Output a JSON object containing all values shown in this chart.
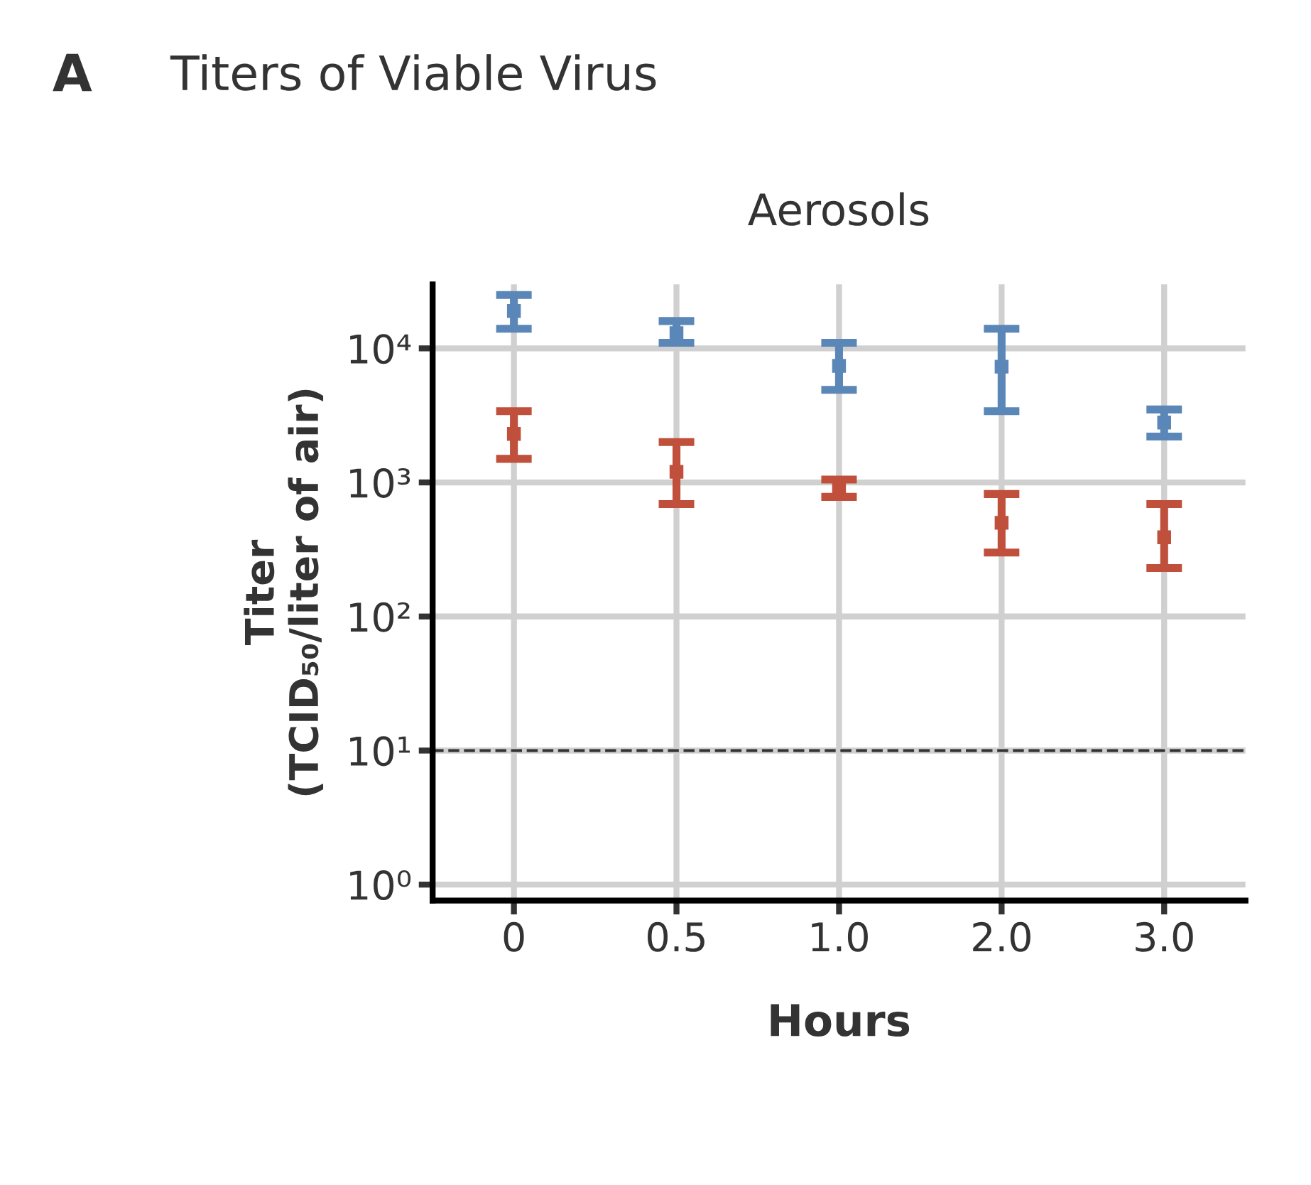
{
  "chart_data": {
    "type": "scatter",
    "title": "Titers of Viable Virus",
    "subtitle": "Aerosols",
    "xlabel": "Hours",
    "ylabel": "Titer\n(TCID₅₀/liter of air)",
    "annotations": [
      "A"
    ],
    "categories": [
      "0",
      "0.5",
      "1.0",
      "2.0",
      "3.0"
    ],
    "log": "y",
    "ylim": [
      0.76,
      30000
    ],
    "yticks": [
      {
        "value": 1,
        "label": "10⁰"
      },
      {
        "value": 10,
        "label": "10¹"
      },
      {
        "value": 100,
        "label": "10²"
      },
      {
        "value": 1000,
        "label": "10³"
      },
      {
        "value": 10000,
        "label": "10⁴"
      }
    ],
    "grid": true,
    "marker": "square",
    "legend": false,
    "ref_lines": [
      {
        "axis": "y",
        "value": 10,
        "color": "#333333",
        "line_style": "dashed"
      }
    ],
    "series": [
      {
        "color": "#c0503c",
        "values": [
          2300,
          1200,
          910,
          500,
          390
        ],
        "errors": [
          [
            1500,
            3400
          ],
          [
            690,
            2000
          ],
          [
            780,
            1050
          ],
          [
            300,
            820
          ],
          [
            230,
            690
          ]
        ]
      },
      {
        "color": "#5b87b8",
        "values": [
          19000,
          13000,
          7400,
          7300,
          2800
        ],
        "errors": [
          [
            14000,
            25000
          ],
          [
            11000,
            16000
          ],
          [
            4900,
            11000
          ],
          [
            3400,
            14000
          ],
          [
            2200,
            3500
          ]
        ]
      }
    ]
  }
}
